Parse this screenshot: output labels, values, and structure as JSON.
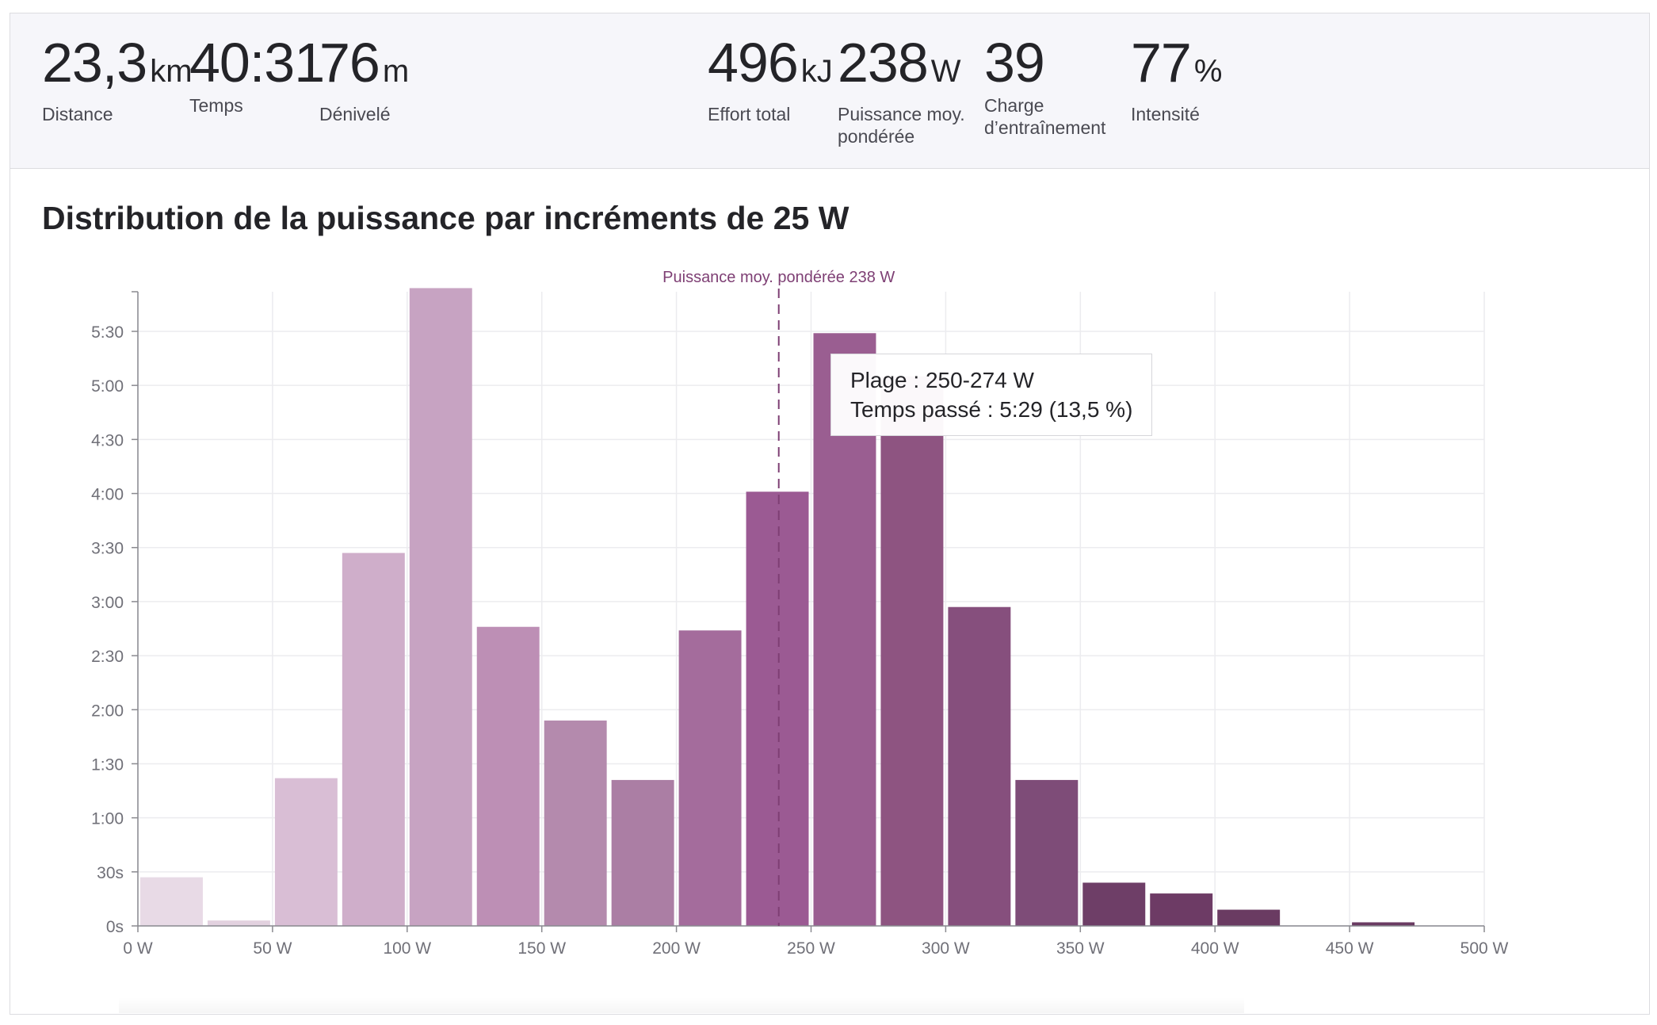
{
  "stats": [
    {
      "value": "23,3",
      "unit": "km",
      "label": "Distance"
    },
    {
      "value": "40:31",
      "unit": "",
      "label": "Temps"
    },
    {
      "value": "76",
      "unit": "m",
      "label": "Dénivelé"
    },
    {
      "value": "496",
      "unit": "kJ",
      "label": "Effort total"
    },
    {
      "value": "238",
      "unit": "W",
      "label": "Puissance moy.\npondérée"
    },
    {
      "value": "39",
      "unit": "",
      "label": "Charge\nd’entraînement"
    },
    {
      "value": "77",
      "unit": "%",
      "label": "Intensité"
    }
  ],
  "section": {
    "title": "Distribution de la puissance par incréments de 25 W"
  },
  "tooltip": {
    "line1": "Plage : 250-274 W",
    "line2": "Temps passé : 5:29 (13,5 %)"
  },
  "chart_data": {
    "type": "bar",
    "bin_width": 25,
    "x_bins_start": [
      0,
      25,
      50,
      75,
      100,
      125,
      150,
      175,
      200,
      225,
      250,
      275,
      300,
      325,
      350,
      375,
      400,
      425,
      450,
      475
    ],
    "values_seconds": [
      27,
      3,
      82,
      207,
      354,
      166,
      114,
      81,
      164,
      241,
      329,
      305,
      177,
      81,
      24,
      18,
      9,
      0,
      2,
      0
    ],
    "colors": [
      "#e8dae6",
      "#e2d1df",
      "#d9bed5",
      "#cfaeca",
      "#c7a3c2",
      "#bd8fb5",
      "#b48aad",
      "#ab7ea4",
      "#a46c9c",
      "#9b5a93",
      "#9a5e91",
      "#8e5481",
      "#864f7d",
      "#7e4c78",
      "#6e3e67",
      "#6d3b65",
      "#6a3b62",
      "#6a3b62",
      "#6a3b62",
      "#6a3b62"
    ],
    "x_ticks": [
      "0 W",
      "50 W",
      "100 W",
      "150 W",
      "200 W",
      "250 W",
      "300 W",
      "350 W",
      "400 W",
      "450 W",
      "500 W"
    ],
    "x_tick_values": [
      0,
      50,
      100,
      150,
      200,
      250,
      300,
      350,
      400,
      450,
      500
    ],
    "y_ticks": [
      "0s",
      "30s",
      "1:00",
      "1:30",
      "2:00",
      "2:30",
      "3:00",
      "3:30",
      "4:00",
      "4:30",
      "5:00",
      "5:30"
    ],
    "y_tick_values": [
      0,
      30,
      60,
      90,
      120,
      150,
      180,
      210,
      240,
      270,
      300,
      330
    ],
    "xlim": [
      0,
      500
    ],
    "ylim": [
      0,
      352
    ],
    "grid": true,
    "reference_line": {
      "value": 238,
      "label": "Puissance moy. pondérée 238 W",
      "color": "#7e3f74"
    },
    "highlight_bin": 10
  }
}
